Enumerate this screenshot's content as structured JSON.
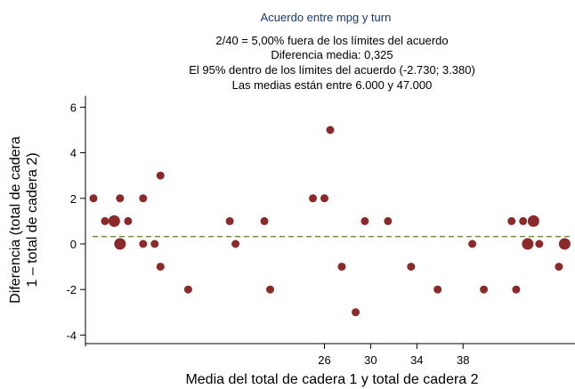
{
  "chart_data": {
    "type": "scatter",
    "title": "Acuerdo entre mpg y turn",
    "subtitle_lines": [
      "2/40 = 5,00% fuera de los límites del acuerdo",
      "Diferencia media: 0,325",
      "El 95% dentro de los límites del acuerdo (-2.730; 3.380)",
      "Las medias están entre 6.000 y 47.000"
    ],
    "xlabel": "Media del total de cadera 1 y total de cadera 2",
    "ylabel_lines": [
      "Diferencia (total de cadera",
      "1 – total de cadera 2)"
    ],
    "x_ticks": [
      26,
      30,
      34,
      38
    ],
    "y_ticks": [
      -4,
      -2,
      0,
      2,
      4,
      6
    ],
    "xlim": [
      6,
      47
    ],
    "ylim": [
      -4.5,
      6.5
    ],
    "mean_difference": 0.325,
    "colors": {
      "points": "#8b2a2a",
      "mean_line": "#6b8c3a",
      "title": "#1a3a6e"
    },
    "points": [
      {
        "x": 6.0,
        "y": 2,
        "n": 1
      },
      {
        "x": 7.0,
        "y": 1,
        "n": 1
      },
      {
        "x": 7.8,
        "y": 1,
        "n": 2
      },
      {
        "x": 8.3,
        "y": 2,
        "n": 1
      },
      {
        "x": 8.3,
        "y": 0,
        "n": 2
      },
      {
        "x": 9.0,
        "y": 1,
        "n": 1
      },
      {
        "x": 10.3,
        "y": 2,
        "n": 1
      },
      {
        "x": 10.3,
        "y": 0,
        "n": 1
      },
      {
        "x": 11.3,
        "y": 0,
        "n": 1
      },
      {
        "x": 11.8,
        "y": 3,
        "n": 1
      },
      {
        "x": 11.8,
        "y": -1,
        "n": 1
      },
      {
        "x": 14.2,
        "y": -2,
        "n": 1
      },
      {
        "x": 17.8,
        "y": 1,
        "n": 1
      },
      {
        "x": 18.3,
        "y": 0,
        "n": 1
      },
      {
        "x": 20.8,
        "y": 1,
        "n": 1
      },
      {
        "x": 21.3,
        "y": -2,
        "n": 1
      },
      {
        "x": 25.0,
        "y": 2,
        "n": 1
      },
      {
        "x": 26.0,
        "y": 2,
        "n": 1
      },
      {
        "x": 26.5,
        "y": 5,
        "n": 1
      },
      {
        "x": 27.5,
        "y": -1,
        "n": 1
      },
      {
        "x": 28.7,
        "y": -3,
        "n": 1
      },
      {
        "x": 29.5,
        "y": 1,
        "n": 1
      },
      {
        "x": 31.5,
        "y": 1,
        "n": 1
      },
      {
        "x": 33.5,
        "y": -1,
        "n": 1
      },
      {
        "x": 35.8,
        "y": -2,
        "n": 1
      },
      {
        "x": 38.8,
        "y": 0,
        "n": 1
      },
      {
        "x": 39.8,
        "y": -2,
        "n": 1
      },
      {
        "x": 42.2,
        "y": 1,
        "n": 1
      },
      {
        "x": 42.6,
        "y": -2,
        "n": 1
      },
      {
        "x": 43.2,
        "y": 1,
        "n": 1
      },
      {
        "x": 43.6,
        "y": 0,
        "n": 2
      },
      {
        "x": 44.1,
        "y": 1,
        "n": 2
      },
      {
        "x": 44.6,
        "y": 0,
        "n": 1
      },
      {
        "x": 46.3,
        "y": -1,
        "n": 1
      },
      {
        "x": 46.8,
        "y": 0,
        "n": 2
      }
    ]
  }
}
